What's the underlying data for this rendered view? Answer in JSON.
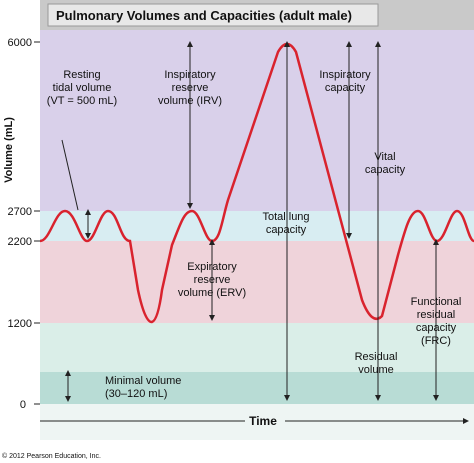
{
  "header": {
    "title": "Pulmonary Volumes and Capacities (adult male)"
  },
  "y_axis": {
    "label": "Volume (mL)",
    "ticks": [
      "6000",
      "2700",
      "2200",
      "1200",
      "0"
    ]
  },
  "x_axis": {
    "label": "Time"
  },
  "labels": [
    {
      "lines": [
        "Resting",
        "tidal volume",
        "(VT = 500 mL)"
      ]
    },
    {
      "lines": [
        "Inspiratory",
        "reserve",
        "volume (IRV)"
      ]
    },
    {
      "lines": [
        "Inspiratory",
        "capacity"
      ]
    },
    {
      "lines": [
        "Vital",
        "capacity"
      ]
    },
    {
      "lines": [
        "Total lung",
        "capacity"
      ]
    },
    {
      "lines": [
        "Expiratory",
        "reserve",
        "volume (ERV)"
      ]
    },
    {
      "lines": [
        "Functional",
        "residual",
        "capacity",
        "(FRC)"
      ]
    },
    {
      "lines": [
        "Residual",
        "volume"
      ]
    },
    {
      "lines": [
        "Minimal volume",
        "(30–120 mL)"
      ]
    }
  ],
  "footer": {
    "copyright": "© 2012 Pearson Education, Inc."
  }
}
